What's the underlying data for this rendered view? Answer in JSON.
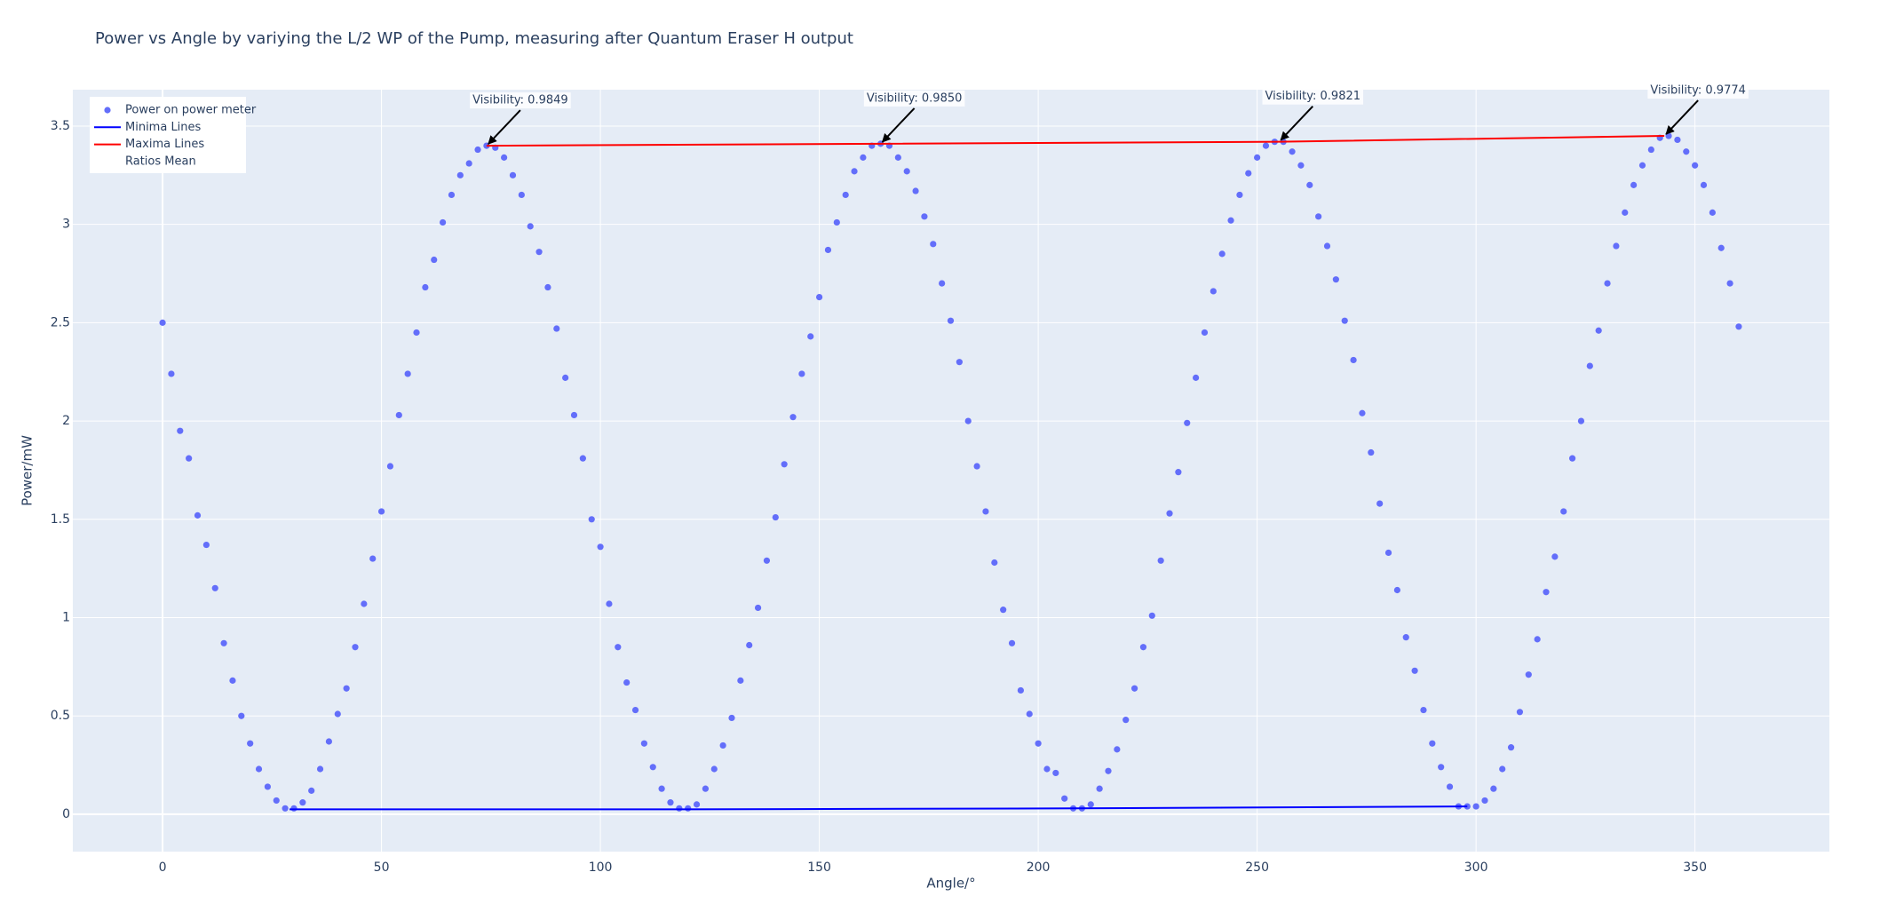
{
  "chart_data": {
    "type": "scatter",
    "title": "Power vs Angle by variying the L/2 WP of the Pump, measuring after Quantum Eraser H output",
    "x_label": "Angle/°",
    "y_label": "Power/mW",
    "xlim": [
      -20.5,
      380.7
    ],
    "ylim": [
      -0.19,
      3.685
    ],
    "xticks": [
      0,
      50,
      100,
      150,
      200,
      250,
      300,
      350
    ],
    "yticks": [
      0,
      0.5,
      1,
      1.5,
      2,
      2.5,
      3,
      3.5
    ],
    "grid": true,
    "legend": "top-left",
    "series": [
      {
        "name": "Power on power meter",
        "mode": "markers",
        "color": "#636efa",
        "x": [
          0,
          2,
          4,
          6,
          8,
          10,
          12,
          14,
          16,
          18,
          20,
          22,
          24,
          26,
          28,
          30,
          32,
          34,
          36,
          38,
          40,
          42,
          44,
          46,
          48,
          50,
          52,
          54,
          56,
          58,
          60,
          62,
          64,
          66,
          68,
          70,
          72,
          74,
          76,
          78,
          80,
          82,
          84,
          86,
          88,
          90,
          92,
          94,
          96,
          98,
          100,
          102,
          104,
          106,
          108,
          110,
          112,
          114,
          116,
          118,
          120,
          122,
          124,
          126,
          128,
          130,
          132,
          134,
          136,
          138,
          140,
          142,
          144,
          146,
          148,
          150,
          152,
          154,
          156,
          158,
          160,
          162,
          164,
          166,
          168,
          170,
          172,
          174,
          176,
          178,
          180,
          182,
          184,
          186,
          188,
          190,
          192,
          194,
          196,
          198,
          200,
          202,
          204,
          206,
          208,
          210,
          212,
          214,
          216,
          218,
          220,
          222,
          224,
          226,
          228,
          230,
          232,
          234,
          236,
          238,
          240,
          242,
          244,
          246,
          248,
          250,
          252,
          254,
          256,
          258,
          260,
          262,
          264,
          266,
          268,
          270,
          272,
          274,
          276,
          278,
          280,
          282,
          284,
          286,
          288,
          290,
          292,
          294,
          296,
          298,
          300,
          302,
          304,
          306,
          308,
          310,
          312,
          314,
          316,
          318,
          320,
          322,
          324,
          326,
          328,
          330,
          332,
          334,
          336,
          338,
          340,
          342,
          344,
          346,
          348,
          350,
          352,
          354,
          356,
          358,
          360
        ],
        "values": [
          2.5,
          2.24,
          1.95,
          1.81,
          1.52,
          1.37,
          1.15,
          0.87,
          0.68,
          0.5,
          0.36,
          0.23,
          0.14,
          0.07,
          0.03,
          0.03,
          0.06,
          0.12,
          0.23,
          0.37,
          0.51,
          0.64,
          0.85,
          1.07,
          1.3,
          1.54,
          1.77,
          2.03,
          2.24,
          2.45,
          2.68,
          2.82,
          3.01,
          3.15,
          3.25,
          3.31,
          3.38,
          3.4,
          3.39,
          3.34,
          3.25,
          3.15,
          2.99,
          2.86,
          2.68,
          2.47,
          2.22,
          2.03,
          1.81,
          1.5,
          1.36,
          1.07,
          0.85,
          0.67,
          0.53,
          0.36,
          0.24,
          0.13,
          0.06,
          0.03,
          0.03,
          0.05,
          0.13,
          0.23,
          0.35,
          0.49,
          0.68,
          0.86,
          1.05,
          1.29,
          1.51,
          1.78,
          2.02,
          2.24,
          2.43,
          2.63,
          2.87,
          3.01,
          3.15,
          3.27,
          3.34,
          3.4,
          3.41,
          3.4,
          3.34,
          3.27,
          3.17,
          3.04,
          2.9,
          2.7,
          2.51,
          2.3,
          2.0,
          1.77,
          1.54,
          1.28,
          1.04,
          0.87,
          0.63,
          0.51,
          0.36,
          0.23,
          0.21,
          0.08,
          0.03,
          0.03,
          0.05,
          0.13,
          0.22,
          0.33,
          0.48,
          0.64,
          0.85,
          1.01,
          1.29,
          1.53,
          1.74,
          1.99,
          2.22,
          2.45,
          2.66,
          2.85,
          3.02,
          3.15,
          3.26,
          3.34,
          3.4,
          3.42,
          3.42,
          3.37,
          3.3,
          3.2,
          3.04,
          2.89,
          2.72,
          2.51,
          2.31,
          2.04,
          1.84,
          1.58,
          1.33,
          1.14,
          0.9,
          0.73,
          0.53,
          0.36,
          0.24,
          0.14,
          0.04,
          0.04,
          0.04,
          0.07,
          0.13,
          0.23,
          0.34,
          0.52,
          0.71,
          0.89,
          1.13,
          1.31,
          1.54,
          1.81,
          2.0,
          2.28,
          2.46,
          2.7,
          2.89,
          3.06,
          3.2,
          3.3,
          3.38,
          3.44,
          3.45,
          3.43,
          3.37,
          3.3,
          3.2,
          3.06,
          2.88,
          2.7,
          2.48
        ]
      },
      {
        "name": "Minima Lines",
        "mode": "lines",
        "color": "#0000ff",
        "x": [
          29,
          119,
          209,
          298
        ],
        "values": [
          0.025,
          0.025,
          0.03,
          0.04
        ]
      },
      {
        "name": "Maxima Lines",
        "mode": "lines",
        "color": "#ff0000",
        "x": [
          74,
          164,
          255,
          343
        ],
        "values": [
          3.4,
          3.41,
          3.42,
          3.45
        ]
      },
      {
        "name": "Ratios Mean",
        "mode": "lines",
        "color": "rgba(0,0,0,0)",
        "x": [],
        "values": []
      }
    ],
    "annotations": [
      {
        "text": "Visibility: 0.9849",
        "x": 74,
        "y": 3.4
      },
      {
        "text": "Visibility: 0.9850",
        "x": 164,
        "y": 3.41
      },
      {
        "text": "Visibility: 0.9821",
        "x": 255,
        "y": 3.42
      },
      {
        "text": "Visibility: 0.9774",
        "x": 343,
        "y": 3.45
      }
    ]
  }
}
